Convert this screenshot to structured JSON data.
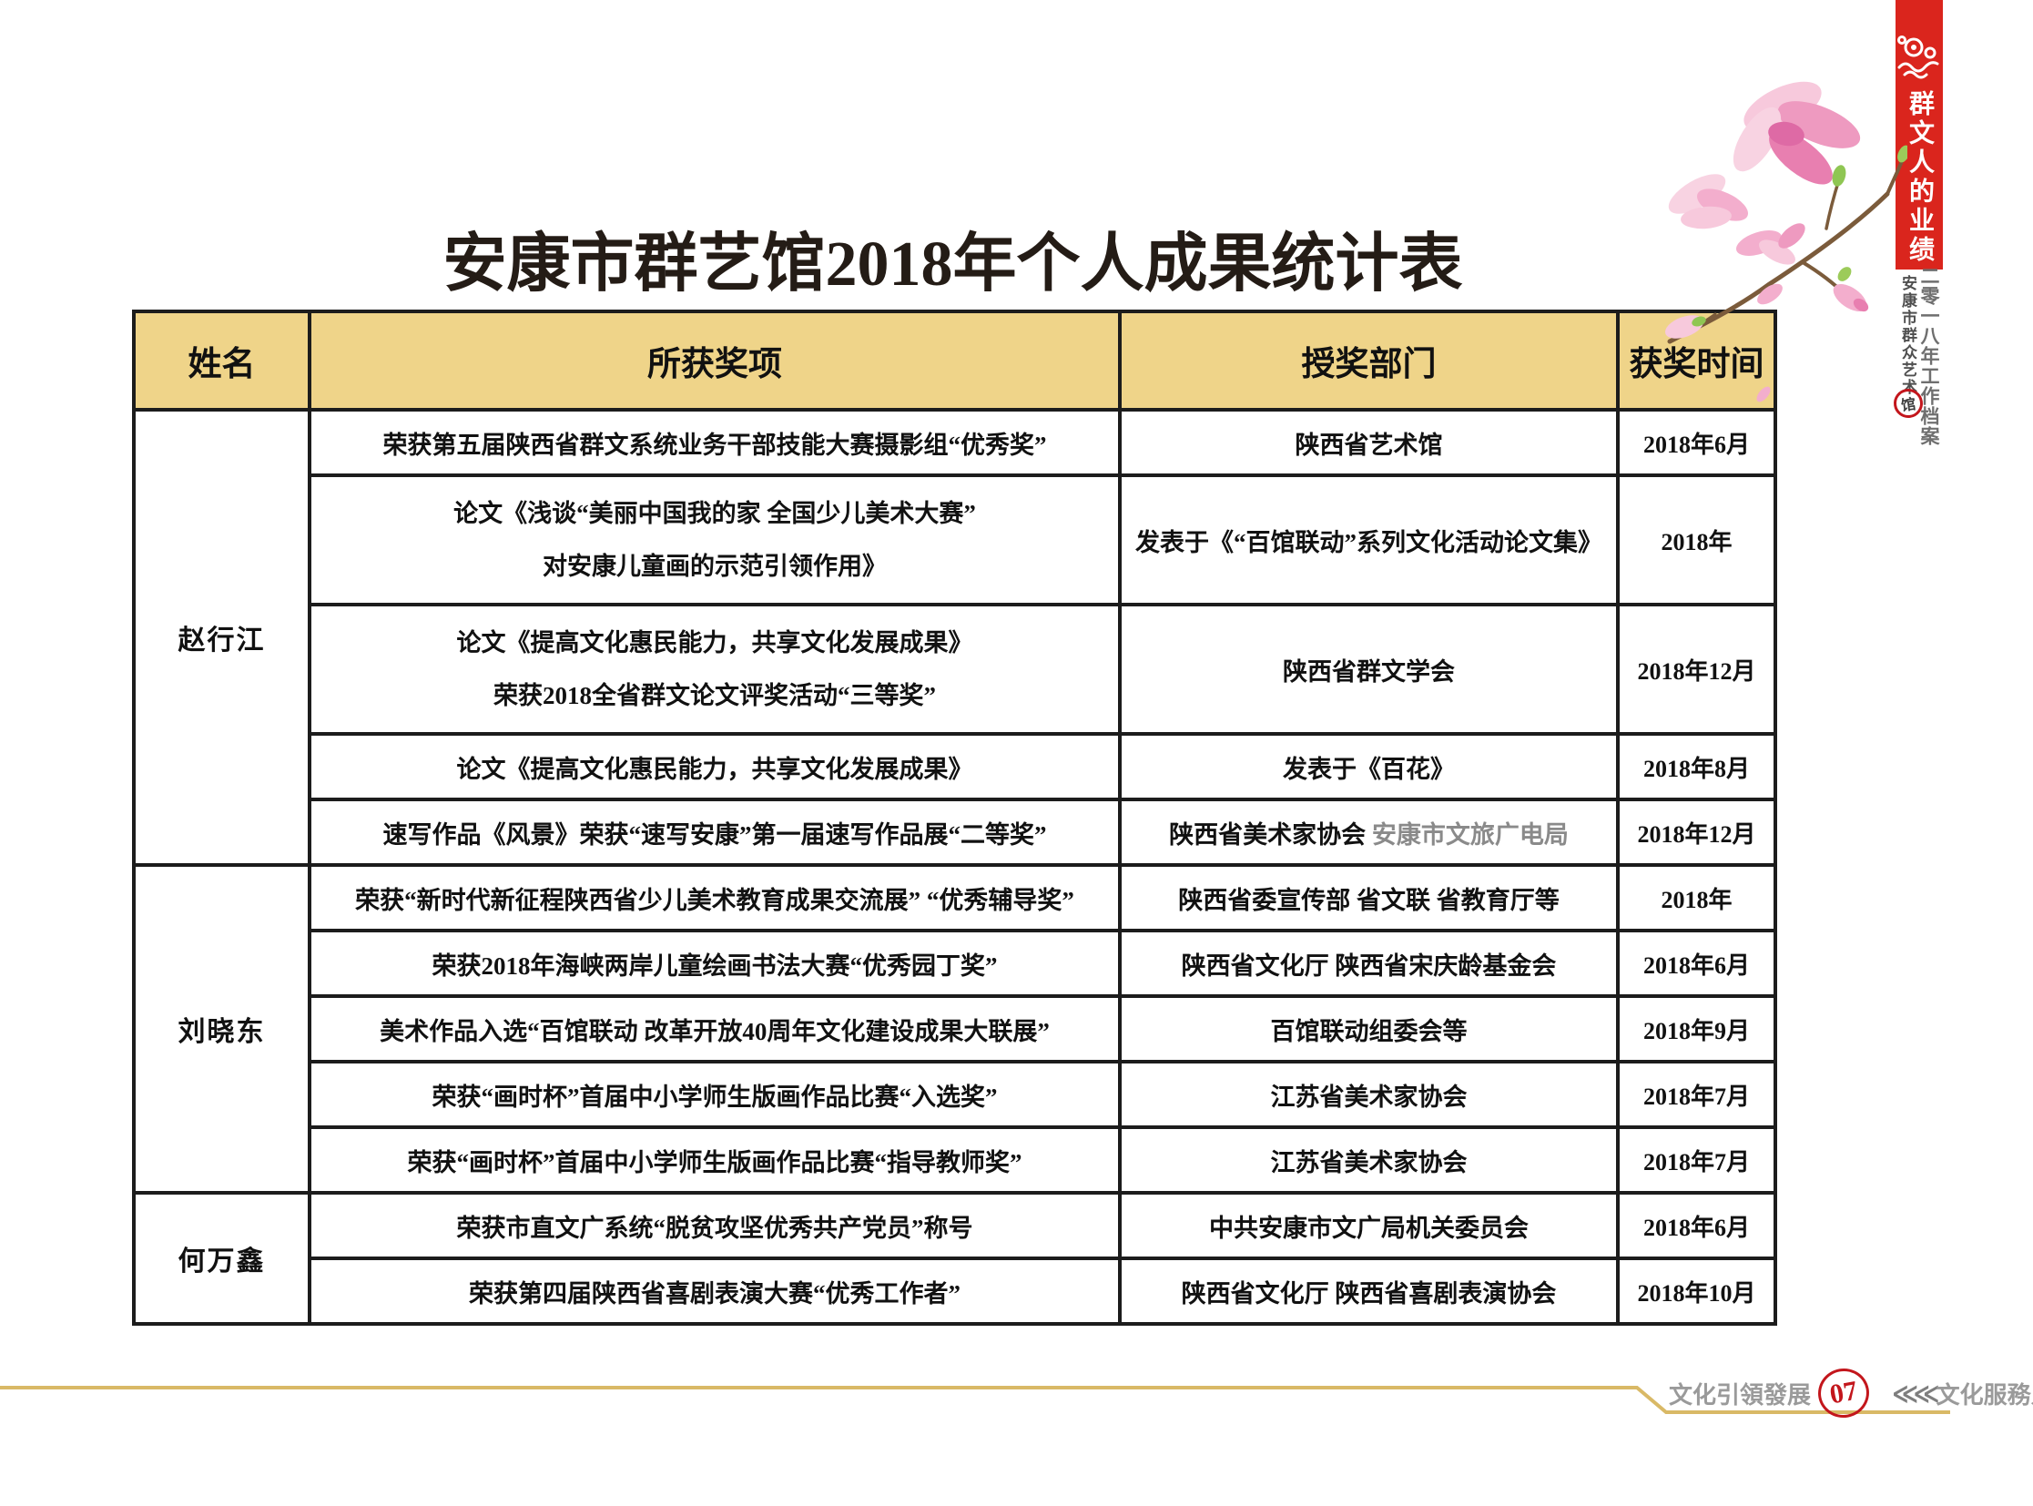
{
  "page": {
    "title": "安康市群艺馆2018年个人成果统计表"
  },
  "sidebar": {
    "banner_text": "群文人的业绩",
    "year_text": "二零一八年工作档案",
    "org_text": "安康市群众艺术",
    "org_seal_char": "馆"
  },
  "footer": {
    "left_label": "文化引領發展",
    "page_number": "07",
    "chevrons": "≪≪",
    "right_label": "文化服務人民"
  },
  "colors": {
    "header_background": "#EFD489",
    "banner_red": "#DA251D",
    "footer_line_gold": "#D9B966",
    "seal_red": "#C3161C",
    "footer_text_gray": "#9A9A9A"
  },
  "table": {
    "headers": [
      "姓名",
      "所获奖项",
      "授奖部门",
      "获奖时间"
    ],
    "groups": [
      {
        "name": "赵行江",
        "rows": [
          {
            "award": [
              "荣获第五届陕西省群文系统业务干部技能大赛摄影组“优秀奖”"
            ],
            "dept": "陕西省艺术馆",
            "time": "2018年6月"
          },
          {
            "award": [
              "论文《浅谈“美丽中国我的家 全国少儿美术大赛”",
              "对安康儿童画的示范引领作用》"
            ],
            "dept": "发表于《“百馆联动”系列文化活动论文集》",
            "time": "2018年"
          },
          {
            "award": [
              "论文《提高文化惠民能力，共享文化发展成果》",
              "荣获2018全省群文论文评奖活动“三等奖”"
            ],
            "dept": "陕西省群文学会",
            "time": "2018年12月"
          },
          {
            "award": [
              "论文《提高文化惠民能力，共享文化发展成果》"
            ],
            "dept": "发表于《百花》",
            "time": "2018年8月"
          },
          {
            "award": [
              "速写作品《风景》荣获“速写安康”第一届速写作品展“二等奖”"
            ],
            "dept": "陕西省美术家协会",
            "dept_extra": "安康市文旅广电局",
            "time": "2018年12月"
          }
        ]
      },
      {
        "name": "刘晓东",
        "rows": [
          {
            "award": [
              "荣获“新时代新征程陕西省少儿美术教育成果交流展” “优秀辅导奖”"
            ],
            "dept": "陕西省委宣传部 省文联 省教育厅等",
            "time": "2018年"
          },
          {
            "award": [
              "荣获2018年海峡两岸儿童绘画书法大赛“优秀园丁奖”"
            ],
            "dept": "陕西省文化厅 陕西省宋庆龄基金会",
            "time": "2018年6月"
          },
          {
            "award": [
              "美术作品入选“百馆联动 改革开放40周年文化建设成果大联展”"
            ],
            "dept": "百馆联动组委会等",
            "time": "2018年9月"
          },
          {
            "award": [
              "荣获“画时杯”首届中小学师生版画作品比赛“入选奖”"
            ],
            "dept": "江苏省美术家协会",
            "time": "2018年7月"
          },
          {
            "award": [
              "荣获“画时杯”首届中小学师生版画作品比赛“指导教师奖”"
            ],
            "dept": "江苏省美术家协会",
            "time": "2018年7月"
          }
        ]
      },
      {
        "name": "何万鑫",
        "rows": [
          {
            "award": [
              "荣获市直文广系统“脱贫攻坚优秀共产党员”称号"
            ],
            "dept": "中共安康市文广局机关委员会",
            "time": "2018年6月"
          },
          {
            "award": [
              "荣获第四届陕西省喜剧表演大赛“优秀工作者”"
            ],
            "dept": "陕西省文化厅 陕西省喜剧表演协会",
            "time": "2018年10月"
          }
        ]
      }
    ]
  }
}
